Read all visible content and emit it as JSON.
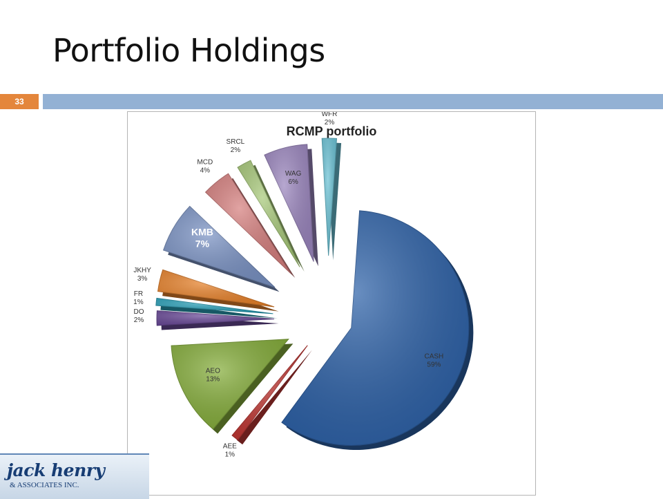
{
  "slide": {
    "title": "Portfolio Holdings",
    "number": "33"
  },
  "logo": {
    "name": "jack henry",
    "subtext": "& ASSOCIATES INC."
  },
  "chart_data": {
    "type": "pie",
    "title": "RCMP portfolio",
    "legend": "none",
    "exploded": true,
    "slices": [
      {
        "label": "CASH",
        "percent": "59%",
        "value": 59,
        "color": "#2e62a8"
      },
      {
        "label": "AEE",
        "percent": "1%",
        "value": 1,
        "color": "#c03834"
      },
      {
        "label": "AEO",
        "percent": "13%",
        "value": 13,
        "color": "#86ae3c"
      },
      {
        "label": "DO",
        "percent": "2%",
        "value": 2,
        "color": "#6a4a98"
      },
      {
        "label": "FR",
        "percent": "1%",
        "value": 1,
        "color": "#2aa0b8"
      },
      {
        "label": "JKHY",
        "percent": "3%",
        "value": 3,
        "color": "#e8832c"
      },
      {
        "label": "KMB",
        "percent": "7%",
        "value": 7,
        "color": "#7b93c4"
      },
      {
        "label": "MCD",
        "percent": "4%",
        "value": 4,
        "color": "#d6807f"
      },
      {
        "label": "SRCL",
        "percent": "2%",
        "value": 2,
        "color": "#a8c97a"
      },
      {
        "label": "WAG",
        "percent": "6%",
        "value": 6,
        "color": "#9b86be"
      },
      {
        "label": "WFR",
        "percent": "2%",
        "value": 2,
        "color": "#6cc3d6"
      }
    ]
  }
}
